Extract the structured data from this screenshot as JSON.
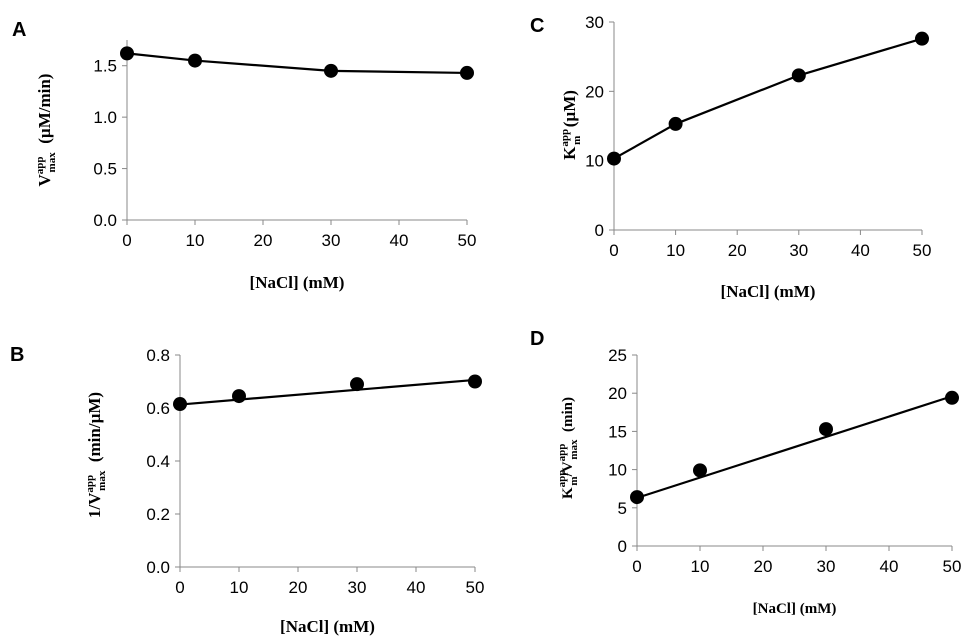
{
  "chart_data": [
    {
      "panel": "A",
      "type": "line",
      "x": [
        0,
        10,
        30,
        50
      ],
      "y": [
        1.62,
        1.55,
        1.45,
        1.43
      ],
      "fit": "connect",
      "xlabel": "[NaCl] (mM)",
      "ylabel": {
        "main": "V",
        "sub": "max",
        "sup": "app",
        "unit": "(µM/min)"
      },
      "xticks": [
        "0",
        "10",
        "20",
        "30",
        "40",
        "50"
      ],
      "yticks": [
        "0.0",
        "0.5",
        "1.0",
        "1.5"
      ],
      "xlim": [
        0,
        50
      ],
      "ylim": [
        0,
        1.75
      ]
    },
    {
      "panel": "B",
      "type": "scatter",
      "x": [
        0,
        10,
        30,
        50
      ],
      "y": [
        0.615,
        0.645,
        0.69,
        0.7
      ],
      "fit": "linear",
      "fit_line": [
        0.613,
        0.706
      ],
      "xlabel": "[NaCl] (mM)",
      "ylabel": {
        "main": "1/V",
        "sub": "max",
        "sup": "app",
        "unit": "(min/µM)"
      },
      "xticks": [
        "0",
        "10",
        "20",
        "30",
        "40",
        "50"
      ],
      "yticks": [
        "0.0",
        "0.2",
        "0.4",
        "0.6",
        "0.8"
      ],
      "xlim": [
        0,
        50
      ],
      "ylim": [
        0,
        0.8
      ]
    },
    {
      "panel": "C",
      "type": "line",
      "x": [
        0,
        10,
        30,
        50
      ],
      "y": [
        10.3,
        15.3,
        22.3,
        27.6
      ],
      "fit": "connect",
      "xlabel": "[NaCl] (mM)",
      "ylabel": {
        "main": "K",
        "sub": "m",
        "sup": "app",
        "unit": "(µM)"
      },
      "xticks": [
        "0",
        "10",
        "20",
        "30",
        "40",
        "50"
      ],
      "yticks": [
        "0",
        "10",
        "20",
        "30"
      ],
      "xlim": [
        0,
        50
      ],
      "ylim": [
        0,
        30
      ]
    },
    {
      "panel": "D",
      "type": "scatter",
      "x": [
        0,
        10,
        30,
        50
      ],
      "y": [
        6.4,
        9.9,
        15.3,
        19.4
      ],
      "fit": "linear",
      "fit_line": [
        6.3,
        19.6
      ],
      "xlabel": "[NaCl] (mM)",
      "ylabel": {
        "main": "K",
        "sub": "m",
        "sup": "app",
        "mid": "/V",
        "sub2": "max",
        "sup2": "app",
        "unit": "(min)"
      },
      "xticks": [
        "0",
        "10",
        "20",
        "30",
        "40",
        "50"
      ],
      "yticks": [
        "0",
        "5",
        "10",
        "15",
        "20",
        "25"
      ],
      "xlim": [
        0,
        50
      ],
      "ylim": [
        0,
        25
      ]
    }
  ]
}
